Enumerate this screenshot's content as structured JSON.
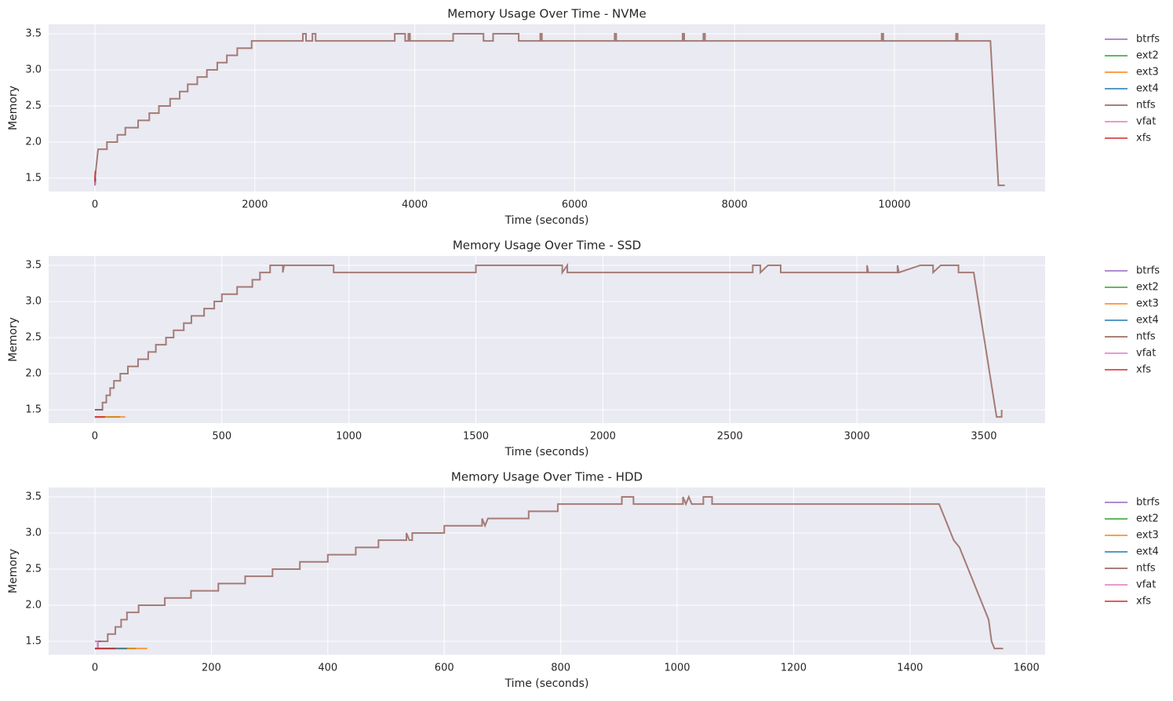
{
  "chart_data": [
    {
      "type": "line",
      "title": "Memory Usage Over Time - NVMe",
      "xlabel": "Time (seconds)",
      "ylabel": "Memory",
      "xlim": [
        -579,
        11884
      ],
      "ylim": [
        1.315,
        3.63
      ],
      "xticks": [
        0,
        2000,
        4000,
        6000,
        8000,
        10000
      ],
      "yticks": [
        1.5,
        {
          "value": 2,
          "label": "2.0"
        },
        2.5,
        {
          "value": 3,
          "label": "3.0"
        },
        3.5
      ],
      "grid": true,
      "legend": "outside right",
      "series": [
        {
          "name": "btrfs",
          "color": "#9467bd",
          "x": [
            0,
            2
          ],
          "values": [
            1.4,
            1.5
          ]
        },
        {
          "name": "ext2",
          "color": "#2ca02c",
          "x": [
            0,
            4
          ],
          "values": [
            1.4,
            1.45
          ]
        },
        {
          "name": "ext3",
          "color": "#ff7f0e",
          "x": [
            0,
            6
          ],
          "values": [
            1.4,
            1.45
          ]
        },
        {
          "name": "ext4",
          "color": "#1f77b4",
          "x": [
            0,
            8
          ],
          "values": [
            1.4,
            1.5
          ]
        },
        {
          "name": "ntfs",
          "color": "#8c564b",
          "x": [
            0,
            20,
            40,
            150,
            150,
            280,
            280,
            380,
            380,
            540,
            540,
            680,
            680,
            800,
            800,
            940,
            940,
            1060,
            1060,
            1160,
            1160,
            1280,
            1280,
            1400,
            1400,
            1530,
            1530,
            1650,
            1650,
            1780,
            1780,
            1960,
            1960,
            2600,
            2600,
            2640,
            2640,
            2720,
            2720,
            2760,
            2760,
            3750,
            3750,
            3880,
            3880,
            3920,
            3920,
            3940,
            3940,
            4480,
            4480,
            4860,
            4860,
            4980,
            4980,
            5300,
            5300,
            5570,
            5570,
            5590,
            5590,
            6500,
            6500,
            6520,
            6520,
            7350,
            7350,
            7370,
            7370,
            7610,
            7610,
            7630,
            7630,
            9840,
            9840,
            9860,
            9860,
            10770,
            10770,
            10790,
            10790,
            11200,
            11300,
            11380
          ],
          "values": [
            1.5,
            1.7,
            1.9,
            1.9,
            2.0,
            2.0,
            2.1,
            2.1,
            2.2,
            2.2,
            2.3,
            2.3,
            2.4,
            2.4,
            2.5,
            2.5,
            2.6,
            2.6,
            2.7,
            2.7,
            2.8,
            2.8,
            2.9,
            2.9,
            3.0,
            3.0,
            3.1,
            3.1,
            3.2,
            3.2,
            3.3,
            3.3,
            3.4,
            3.4,
            3.5,
            3.5,
            3.4,
            3.4,
            3.5,
            3.5,
            3.4,
            3.4,
            3.5,
            3.5,
            3.4,
            3.4,
            3.5,
            3.5,
            3.4,
            3.4,
            3.5,
            3.5,
            3.4,
            3.4,
            3.5,
            3.5,
            3.4,
            3.4,
            3.5,
            3.5,
            3.4,
            3.4,
            3.5,
            3.5,
            3.4,
            3.4,
            3.5,
            3.5,
            3.4,
            3.4,
            3.5,
            3.5,
            3.4,
            3.4,
            3.5,
            3.5,
            3.4,
            3.4,
            3.5,
            3.5,
            3.4,
            3.4,
            1.4,
            1.4
          ]
        },
        {
          "name": "vfat",
          "color": "#e377c2",
          "x": [
            0,
            3
          ],
          "values": [
            1.4,
            1.45
          ]
        },
        {
          "name": "xfs",
          "color": "#d62728",
          "x": [
            0,
            5
          ],
          "values": [
            1.45,
            1.6
          ]
        }
      ]
    },
    {
      "type": "line",
      "title": "Memory Usage Over Time - SSD",
      "xlabel": "Time (seconds)",
      "ylabel": "Memory",
      "xlim": [
        -182,
        3741
      ],
      "ylim": [
        1.315,
        3.63
      ],
      "xticks": [
        0,
        500,
        1000,
        1500,
        2000,
        2500,
        3000,
        3500
      ],
      "yticks": [
        1.5,
        {
          "value": 2,
          "label": "2.0"
        },
        2.5,
        {
          "value": 3,
          "label": "3.0"
        },
        3.5
      ],
      "grid": true,
      "legend": "outside right",
      "series": [
        {
          "name": "btrfs",
          "color": "#9467bd",
          "x": [
            0,
            10
          ],
          "values": [
            1.4,
            1.4
          ]
        },
        {
          "name": "ext2",
          "color": "#2ca02c",
          "x": [
            0,
            100
          ],
          "values": [
            1.4,
            1.4
          ]
        },
        {
          "name": "ext3",
          "color": "#ff7f0e",
          "x": [
            0,
            120
          ],
          "values": [
            1.4,
            1.4
          ]
        },
        {
          "name": "ext4",
          "color": "#1f77b4",
          "x": [
            0,
            30
          ],
          "values": [
            1.5,
            1.5
          ]
        },
        {
          "name": "ntfs",
          "color": "#8c564b",
          "x": [
            0,
            30,
            30,
            45,
            45,
            60,
            60,
            75,
            75,
            100,
            100,
            130,
            130,
            170,
            170,
            210,
            210,
            240,
            240,
            280,
            280,
            310,
            310,
            350,
            350,
            380,
            380,
            430,
            430,
            470,
            470,
            500,
            500,
            560,
            560,
            620,
            620,
            650,
            650,
            690,
            690,
            740,
            740,
            745,
            940,
            940,
            1500,
            1500,
            1840,
            1840,
            1860,
            1860,
            2590,
            2590,
            2620,
            2620,
            2650,
            2700,
            2700,
            3040,
            3040,
            3045,
            3160,
            3160,
            3165,
            3250,
            3300,
            3300,
            3330,
            3400,
            3400,
            3460,
            3550,
            3570,
            3570
          ],
          "values": [
            1.5,
            1.5,
            1.6,
            1.6,
            1.7,
            1.7,
            1.8,
            1.8,
            1.9,
            1.9,
            2.0,
            2.0,
            2.1,
            2.1,
            2.2,
            2.2,
            2.3,
            2.3,
            2.4,
            2.4,
            2.5,
            2.5,
            2.6,
            2.6,
            2.7,
            2.7,
            2.8,
            2.8,
            2.9,
            2.9,
            3.0,
            3.0,
            3.1,
            3.1,
            3.2,
            3.2,
            3.3,
            3.3,
            3.4,
            3.4,
            3.5,
            3.5,
            3.4,
            3.5,
            3.5,
            3.4,
            3.4,
            3.5,
            3.5,
            3.4,
            3.5,
            3.4,
            3.4,
            3.5,
            3.5,
            3.4,
            3.5,
            3.5,
            3.4,
            3.4,
            3.5,
            3.4,
            3.4,
            3.5,
            3.4,
            3.5,
            3.5,
            3.4,
            3.5,
            3.5,
            3.4,
            3.4,
            1.4,
            1.4,
            1.5
          ]
        },
        {
          "name": "vfat",
          "color": "#e377c2",
          "x": [
            0,
            20
          ],
          "values": [
            1.4,
            1.4
          ]
        },
        {
          "name": "xfs",
          "color": "#d62728",
          "x": [
            0,
            40
          ],
          "values": [
            1.4,
            1.4
          ]
        }
      ]
    },
    {
      "type": "line",
      "title": "Memory Usage Over Time - HDD",
      "xlabel": "Time (seconds)",
      "ylabel": "Memory",
      "xlim": [
        -79.5,
        1632
      ],
      "ylim": [
        1.315,
        3.63
      ],
      "xticks": [
        0,
        200,
        400,
        600,
        800,
        1000,
        1200,
        1400,
        1600
      ],
      "yticks": [
        1.5,
        {
          "value": 2,
          "label": "2.0"
        },
        2.5,
        {
          "value": 3,
          "label": "3.0"
        },
        3.5
      ],
      "grid": true,
      "legend": "outside right",
      "series": [
        {
          "name": "btrfs",
          "color": "#9467bd",
          "x": [
            0,
            10
          ],
          "values": [
            1.5,
            1.5
          ]
        },
        {
          "name": "ext2",
          "color": "#2ca02c",
          "x": [
            0,
            70
          ],
          "values": [
            1.4,
            1.4
          ]
        },
        {
          "name": "ext3",
          "color": "#ff7f0e",
          "x": [
            0,
            90
          ],
          "values": [
            1.4,
            1.4
          ]
        },
        {
          "name": "ext4",
          "color": "#1f77b4",
          "x": [
            0,
            55
          ],
          "values": [
            1.4,
            1.4
          ]
        },
        {
          "name": "ntfs",
          "color": "#8c564b",
          "x": [
            0,
            5,
            5,
            22,
            22,
            35,
            35,
            45,
            45,
            55,
            55,
            75,
            75,
            120,
            120,
            165,
            165,
            212,
            212,
            258,
            258,
            305,
            305,
            352,
            352,
            400,
            400,
            448,
            448,
            487,
            487,
            535,
            535,
            540,
            545,
            545,
            600,
            600,
            665,
            665,
            670,
            675,
            745,
            745,
            795,
            795,
            905,
            905,
            925,
            925,
            1010,
            1010,
            1015,
            1020,
            1025,
            1045,
            1045,
            1060,
            1060,
            1450,
            1455,
            1460,
            1465,
            1470,
            1475,
            1485,
            1490,
            1495,
            1500,
            1505,
            1510,
            1515,
            1520,
            1525,
            1530,
            1535,
            1540,
            1545,
            1560
          ],
          "values": [
            1.4,
            1.4,
            1.5,
            1.5,
            1.6,
            1.6,
            1.7,
            1.7,
            1.8,
            1.8,
            1.9,
            1.9,
            2.0,
            2.0,
            2.1,
            2.1,
            2.2,
            2.2,
            2.3,
            2.3,
            2.4,
            2.4,
            2.5,
            2.5,
            2.6,
            2.6,
            2.7,
            2.7,
            2.8,
            2.8,
            2.9,
            2.9,
            3.0,
            2.9,
            2.9,
            3.0,
            3.0,
            3.1,
            3.1,
            3.2,
            3.1,
            3.2,
            3.2,
            3.3,
            3.3,
            3.4,
            3.4,
            3.5,
            3.5,
            3.4,
            3.4,
            3.5,
            3.4,
            3.5,
            3.4,
            3.4,
            3.5,
            3.5,
            3.4,
            3.4,
            3.3,
            3.2,
            3.1,
            3.0,
            2.9,
            2.8,
            2.7,
            2.6,
            2.5,
            2.4,
            2.3,
            2.2,
            2.1,
            2.0,
            1.9,
            1.8,
            1.5,
            1.4,
            1.4
          ]
        },
        {
          "name": "vfat",
          "color": "#e377c2",
          "x": [
            0,
            5,
            5
          ],
          "values": [
            1.5,
            1.5,
            1.4
          ]
        },
        {
          "name": "xfs",
          "color": "#d62728",
          "x": [
            0,
            35
          ],
          "values": [
            1.4,
            1.4
          ]
        }
      ]
    }
  ]
}
